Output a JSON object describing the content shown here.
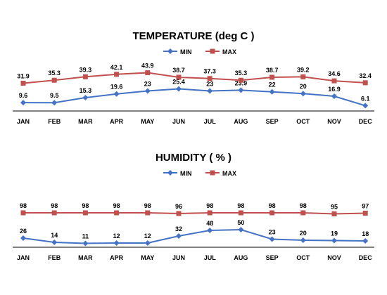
{
  "colors": {
    "min": "#4472C4",
    "max": "#C0504D",
    "text": "#000000",
    "axis": "#000000"
  },
  "chart_data": [
    {
      "type": "line",
      "title": "TEMPERATURE (deg C )",
      "categories": [
        "JAN",
        "FEB",
        "MAR",
        "APR",
        "MAY",
        "JUN",
        "JUL",
        "AUG",
        "SEP",
        "OCT",
        "NOV",
        "DEC"
      ],
      "series": [
        {
          "name": "MIN",
          "values": [
            9.6,
            9.5,
            15.3,
            19.6,
            23,
            25.4,
            23,
            23.9,
            22,
            20,
            16.9,
            6.1
          ],
          "labels": [
            "9.6",
            "9.5",
            "15.3",
            "19.6",
            "23",
            "25.4",
            "23",
            "23.9",
            "22",
            "20",
            "16.9",
            "6.1"
          ]
        },
        {
          "name": "MAX",
          "values": [
            31.9,
            35.3,
            39.3,
            42.1,
            43.9,
            38.7,
            37.3,
            35.3,
            38.7,
            39.2,
            34.6,
            32.4
          ],
          "labels": [
            "31.9",
            "35.3",
            "39.3",
            "42.1",
            "43.9",
            "38.7",
            "37.3",
            "35.3",
            "38.7",
            "39.2",
            "34.6",
            "32.4"
          ]
        }
      ],
      "ylim": [
        0,
        50
      ],
      "legend": "top-center",
      "grid": false,
      "xlabel": "",
      "ylabel": ""
    },
    {
      "type": "line",
      "title": "HUMIDITY ( % )",
      "categories": [
        "JAN",
        "FEB",
        "MAR",
        "APR",
        "MAY",
        "JUN",
        "JUL",
        "AUG",
        "SEP",
        "OCT",
        "NOV",
        "DEC"
      ],
      "series": [
        {
          "name": "MIN",
          "values": [
            26,
            14,
            11,
            12,
            12,
            32,
            48,
            50,
            23,
            20,
            19,
            18
          ],
          "labels": [
            "26",
            "14",
            "11",
            "12",
            "12",
            "32",
            "48",
            "50",
            "23",
            "20",
            "19",
            "18"
          ]
        },
        {
          "name": "MAX",
          "values": [
            98,
            98,
            98,
            98,
            98,
            96,
            98,
            98,
            98,
            98,
            95,
            97
          ],
          "labels": [
            "98",
            "98",
            "98",
            "98",
            "98",
            "96",
            "98",
            "98",
            "98",
            "98",
            "95",
            "97"
          ]
        }
      ],
      "ylim": [
        0,
        140
      ],
      "legend": "top-center",
      "grid": false,
      "xlabel": "",
      "ylabel": ""
    }
  ]
}
